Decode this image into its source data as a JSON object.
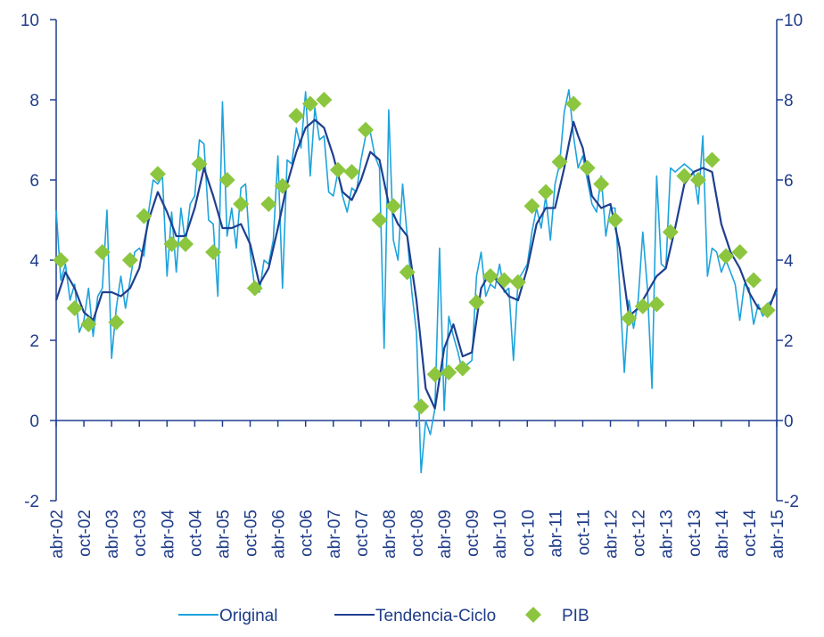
{
  "chart_data": {
    "type": "line",
    "categories": [
      "abr-02",
      null,
      null,
      null,
      null,
      null,
      "oct-02",
      null,
      null,
      null,
      null,
      null,
      "abr-03",
      null,
      null,
      null,
      null,
      null,
      "oct-03",
      null,
      null,
      null,
      null,
      null,
      "abr-04",
      null,
      null,
      null,
      null,
      null,
      "oct-04",
      null,
      null,
      null,
      null,
      null,
      "abr-05",
      null,
      null,
      null,
      null,
      null,
      "oct-05",
      null,
      null,
      null,
      null,
      null,
      "abr-06",
      null,
      null,
      null,
      null,
      null,
      "oct-06",
      null,
      null,
      null,
      null,
      null,
      "abr-07",
      null,
      null,
      null,
      null,
      null,
      "oct-07",
      null,
      null,
      null,
      null,
      null,
      "abr-08",
      null,
      null,
      null,
      null,
      null,
      "oct-08",
      null,
      null,
      null,
      null,
      null,
      "abr-09",
      null,
      null,
      null,
      null,
      null,
      "oct-09",
      null,
      null,
      null,
      null,
      null,
      "abr-10",
      null,
      null,
      null,
      null,
      null,
      "oct-10",
      null,
      null,
      null,
      null,
      null,
      "abr-11",
      null,
      null,
      null,
      null,
      null,
      "oct-11",
      null,
      null,
      null,
      null,
      null,
      "abr-12",
      null,
      null,
      null,
      null,
      null,
      "oct-12",
      null,
      null,
      null,
      null,
      null,
      "abr-13",
      null,
      null,
      null,
      null,
      null,
      "oct-13",
      null,
      null,
      null,
      null,
      null,
      "abr-14",
      null,
      null,
      null,
      null,
      null,
      "oct-14",
      null,
      null,
      null,
      null,
      null,
      "abr-15"
    ],
    "series": [
      {
        "name": "Original",
        "color": "#1ea3dc",
        "style": "line",
        "values": [
          5.25,
          3.5,
          3.9,
          3.0,
          3.4,
          2.2,
          2.5,
          3.3,
          2.1,
          3.1,
          3.3,
          5.25,
          1.55,
          2.8,
          3.6,
          2.8,
          3.5,
          4.2,
          4.3,
          4.1,
          5.2,
          6.0,
          5.9,
          6.1,
          3.6,
          5.2,
          3.7,
          5.3,
          4.4,
          5.4,
          5.6,
          7.0,
          6.9,
          5.0,
          4.9,
          3.1,
          7.95,
          4.6,
          5.3,
          4.3,
          5.8,
          5.9,
          4.2,
          3.3,
          3.2,
          4.0,
          3.9,
          4.5,
          6.6,
          3.3,
          6.5,
          6.4,
          7.3,
          6.8,
          8.2,
          6.1,
          7.8,
          7.0,
          7.1,
          5.7,
          5.6,
          6.2,
          5.6,
          5.2,
          5.8,
          5.7,
          6.5,
          7.1,
          7.2,
          6.6,
          6.3,
          1.8,
          7.75,
          4.5,
          4.0,
          5.9,
          4.6,
          3.2,
          2.2,
          -1.3,
          0.0,
          -0.35,
          0.3,
          4.3,
          0.25,
          2.6,
          2.1,
          1.7,
          1.2,
          1.4,
          1.5,
          3.6,
          4.2,
          3.1,
          3.4,
          3.3,
          3.9,
          3.2,
          3.3,
          1.5,
          3.5,
          3.7,
          3.9,
          4.7,
          5.3,
          4.8,
          5.6,
          4.5,
          5.9,
          6.4,
          7.7,
          8.25,
          7.1,
          6.3,
          6.6,
          6.0,
          5.4,
          5.2,
          6.1,
          4.6,
          5.3,
          5.3,
          3.3,
          1.2,
          3.0,
          2.3,
          3.0,
          4.7,
          3.3,
          0.8,
          6.1,
          3.9,
          3.8,
          6.3,
          6.2,
          6.3,
          6.4,
          6.3,
          6.2,
          5.4,
          7.1,
          3.6,
          4.3,
          4.2,
          3.7,
          4.0,
          3.7,
          3.4,
          2.5,
          3.4,
          3.3,
          2.4,
          2.9,
          2.6,
          2.9,
          3.0,
          3.2
        ]
      },
      {
        "name": "Tendencia-Ciclo",
        "color": "#1f3f8f",
        "style": "line",
        "values": [
          3.0,
          3.35,
          3.7,
          3.5,
          3.3,
          3.0,
          2.7,
          2.6,
          2.5,
          2.85,
          3.2,
          3.2,
          3.2,
          3.15,
          3.1,
          3.2,
          3.3,
          3.55,
          3.8,
          4.4,
          5.0,
          5.35,
          5.7,
          5.45,
          5.2,
          4.9,
          4.6,
          4.6,
          4.6,
          4.95,
          5.3,
          5.8,
          6.3,
          5.95,
          5.6,
          5.2,
          4.8,
          4.8,
          4.8,
          4.85,
          4.9,
          4.65,
          4.4,
          3.9,
          3.4,
          3.6,
          3.8,
          4.3,
          4.8,
          5.35,
          5.9,
          6.3,
          6.7,
          7.0,
          7.3,
          7.4,
          7.5,
          7.4,
          7.3,
          6.95,
          6.6,
          6.15,
          5.7,
          5.6,
          5.5,
          5.75,
          6.0,
          6.35,
          6.7,
          6.6,
          6.5,
          5.95,
          5.4,
          5.15,
          4.9,
          4.75,
          4.6,
          3.8,
          3.0,
          1.9,
          0.8,
          0.55,
          0.3,
          1.05,
          1.8,
          2.1,
          2.4,
          2.0,
          1.6,
          1.65,
          1.7,
          2.5,
          3.3,
          3.5,
          3.7,
          3.55,
          3.4,
          3.25,
          3.1,
          3.05,
          3.0,
          3.4,
          3.8,
          4.35,
          4.9,
          5.1,
          5.3,
          5.3,
          5.3,
          5.8,
          6.3,
          6.9,
          7.45,
          7.1,
          6.8,
          6.2,
          5.6,
          5.45,
          5.3,
          5.35,
          5.4,
          4.85,
          4.3,
          3.45,
          2.6,
          2.7,
          2.8,
          3.0,
          3.2,
          3.4,
          3.6,
          3.7,
          3.8,
          4.3,
          4.8,
          5.35,
          5.9,
          6.05,
          6.2,
          6.25,
          6.3,
          6.25,
          6.2,
          5.55,
          4.9,
          4.55,
          4.2,
          4.0,
          3.8,
          3.5,
          3.2,
          3.0,
          2.8,
          2.75,
          2.7,
          3.0,
          3.3
        ]
      },
      {
        "name": "PIB",
        "color": "#8cc63f",
        "style": "marker",
        "values": [
          null,
          4.0,
          null,
          null,
          2.8,
          null,
          null,
          2.4,
          null,
          null,
          4.2,
          null,
          null,
          2.45,
          null,
          null,
          4.0,
          null,
          null,
          5.1,
          null,
          null,
          6.15,
          null,
          null,
          4.4,
          null,
          null,
          4.4,
          null,
          null,
          6.4,
          null,
          null,
          4.2,
          null,
          null,
          6.0,
          null,
          null,
          5.4,
          null,
          null,
          3.3,
          null,
          null,
          5.4,
          null,
          null,
          5.85,
          null,
          null,
          7.6,
          null,
          null,
          7.9,
          null,
          null,
          8.0,
          null,
          null,
          6.25,
          null,
          null,
          6.2,
          null,
          null,
          7.25,
          null,
          null,
          5.0,
          null,
          null,
          5.35,
          null,
          null,
          3.7,
          null,
          null,
          0.35,
          null,
          null,
          1.15,
          null,
          null,
          1.2,
          null,
          null,
          1.3,
          null,
          null,
          2.95,
          null,
          null,
          3.6,
          null,
          null,
          3.5,
          null,
          null,
          3.45,
          null,
          null,
          5.35,
          null,
          null,
          5.7,
          null,
          null,
          6.45,
          null,
          null,
          7.9,
          null,
          null,
          6.3,
          null,
          null,
          5.9,
          null,
          null,
          5.0,
          null,
          null,
          2.55,
          null,
          null,
          2.85,
          null,
          null,
          2.9,
          null,
          null,
          4.7,
          null,
          null,
          6.1,
          null,
          null,
          6.0,
          null,
          null,
          6.5,
          null,
          null,
          4.1,
          null,
          null,
          4.2,
          null,
          null,
          3.5,
          null,
          null,
          2.75,
          null,
          null
        ]
      }
    ],
    "ylim": [
      -2,
      10
    ],
    "yticks": [
      -2,
      0,
      2,
      4,
      6,
      8,
      10
    ],
    "y2lim": [
      -2,
      10
    ],
    "y2ticks": [
      -2,
      0,
      2,
      4,
      6,
      8,
      10
    ],
    "grid": false,
    "legend": "bottom"
  }
}
